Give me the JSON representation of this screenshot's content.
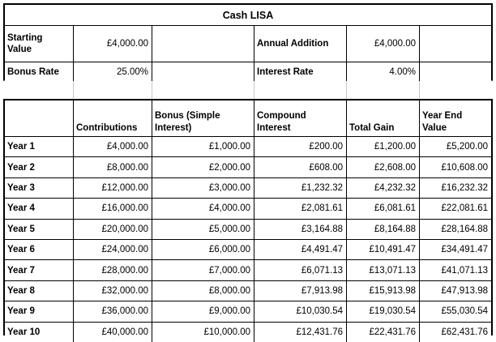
{
  "title": "Cash LISA",
  "summary": {
    "starting_value_label": "Starting\nValue",
    "starting_value": "£4,000.00",
    "annual_addition_label": "Annual Addition",
    "annual_addition": "£4,000.00",
    "bonus_rate_label": "Bonus Rate",
    "bonus_rate": "25.00%",
    "interest_rate_label": "Interest Rate",
    "interest_rate": "4.00%"
  },
  "table": {
    "headers": [
      "",
      "Contributions",
      "Bonus (Simple\nInterest)",
      "Compound\nInterest",
      "Total Gain",
      "Year End\nValue"
    ],
    "rows": [
      {
        "label": "Year 1",
        "values": [
          "£4,000.00",
          "£1,000.00",
          "£200.00",
          "£1,200.00",
          "£5,200.00"
        ]
      },
      {
        "label": "Year 2",
        "values": [
          "£8,000.00",
          "£2,000.00",
          "£608.00",
          "£2,608.00",
          "£10,608.00"
        ]
      },
      {
        "label": "Year 3",
        "values": [
          "£12,000.00",
          "£3,000.00",
          "£1,232.32",
          "£4,232.32",
          "£16,232.32"
        ]
      },
      {
        "label": "Year 4",
        "values": [
          "£16,000.00",
          "£4,000.00",
          "£2,081.61",
          "£6,081.61",
          "£22,081.61"
        ]
      },
      {
        "label": "Year 5",
        "values": [
          "£20,000.00",
          "£5,000.00",
          "£3,164.88",
          "£8,164.88",
          "£28,164.88"
        ]
      },
      {
        "label": "Year 6",
        "values": [
          "£24,000.00",
          "£6,000.00",
          "£4,491.47",
          "£10,491.47",
          "£34,491.47"
        ]
      },
      {
        "label": "Year 7",
        "values": [
          "£28,000.00",
          "£7,000.00",
          "£6,071.13",
          "£13,071.13",
          "£41,071.13"
        ]
      },
      {
        "label": "Year 8",
        "values": [
          "£32,000.00",
          "£8,000.00",
          "£7,913.98",
          "£15,913.98",
          "£47,913.98"
        ]
      },
      {
        "label": "Year 9",
        "values": [
          "£36,000.00",
          "£9,000.00",
          "£10,030.54",
          "£19,030.54",
          "£55,030.54"
        ]
      },
      {
        "label": "Year 10",
        "values": [
          "£40,000.00",
          "£10,000.00",
          "£12,431.76",
          "£22,431.76",
          "£62,431.76"
        ]
      }
    ]
  },
  "colors": {
    "border": "#000000",
    "gridline": "#c9c9c9",
    "background": "#ffffff",
    "text": "#000000"
  }
}
